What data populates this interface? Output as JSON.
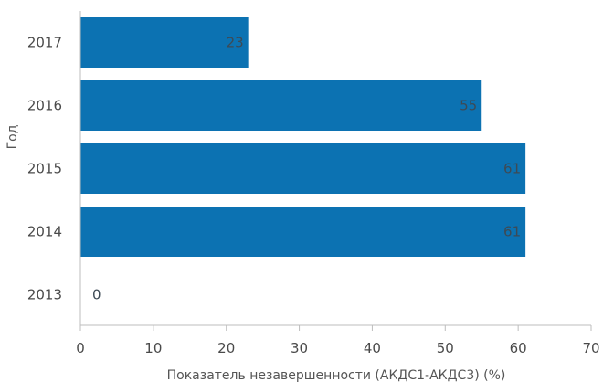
{
  "chart_data": {
    "type": "bar",
    "orientation": "horizontal",
    "categories": [
      "2017",
      "2016",
      "2015",
      "2014",
      "2013"
    ],
    "values": [
      23,
      55,
      61,
      61,
      0
    ],
    "data_labels": [
      "23",
      "55",
      "61",
      "61",
      "0"
    ],
    "xlabel": "Показатель незавершенности (АКДС1-АКДС3) (%)",
    "ylabel": "Год",
    "xlim": [
      0,
      70
    ],
    "xticks": [
      "0",
      "10",
      "20",
      "30",
      "40",
      "50",
      "60",
      "70"
    ],
    "grid": false,
    "bar_color": "#0c72b2"
  }
}
